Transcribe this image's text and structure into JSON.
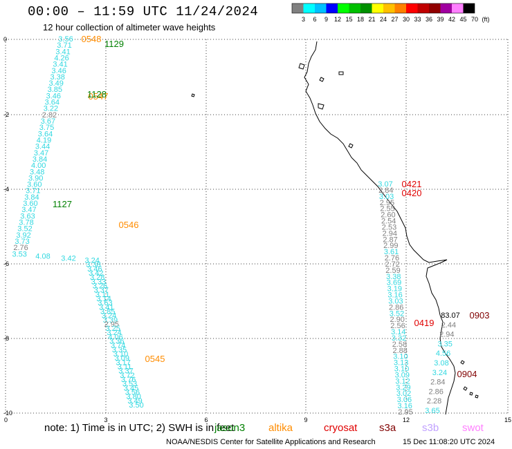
{
  "header": {
    "title": "00:00 – 11:59 UTC 11/24/2024",
    "subtitle": "12 hour collection of altimeter wave heights"
  },
  "colorbar": {
    "colors": [
      "#808080",
      "#00ffff",
      "#00c0ff",
      "#0000ff",
      "#00ff00",
      "#00c000",
      "#009000",
      "#ffff00",
      "#ffc000",
      "#ff8000",
      "#ff0000",
      "#c00000",
      "#900000",
      "#a000a0",
      "#ff80ff",
      "#000000"
    ],
    "labels": [
      "3",
      "6",
      "9",
      "12",
      "15",
      "18",
      "21",
      "24",
      "27",
      "30",
      "33",
      "36",
      "39",
      "42",
      "45",
      "70",
      "(ft)"
    ]
  },
  "axes": {
    "x_ticks": [
      "0",
      "3",
      "6",
      "9",
      "12",
      "15"
    ],
    "y_ticks": [
      "0",
      "-2",
      "-4",
      "-6",
      "-8",
      "-10"
    ]
  },
  "tracks": {
    "track_a": {
      "values": [
        "3.56",
        "3.71",
        "3.41",
        "4.26",
        "3.41",
        "3.46",
        "3.38",
        "3.49",
        "3.85",
        "3.46",
        "3.64",
        "3.22",
        "2.82",
        "3.67",
        "3.75",
        "3.64",
        "4.19",
        "3.44",
        "3.47",
        "3.84",
        "4.00",
        "3.48",
        "3.90",
        "3.60",
        "3.71",
        "3.84",
        "3.60",
        "3.47",
        "3.63",
        "3.78",
        "3.52",
        "3.92",
        "3.73",
        "2.76",
        "3.53",
        "4.08",
        "3.42",
        "3.24",
        "3.38",
        "3.46",
        "3.42",
        "3.28",
        "3.33",
        "3.26",
        "3.37",
        "3.11",
        "3.14",
        "3.63",
        "3.41",
        "3.85",
        "3.24",
        "3.39",
        "2.95",
        "3.25",
        "3.24",
        "4.06",
        "3.36",
        "3.74",
        "3.35",
        "3.10",
        "3.09",
        "3.17",
        "3.11",
        "3.37",
        "3.72",
        "3.76",
        "3.53",
        "3.45",
        "3.56",
        "3.80",
        "3.49",
        "3.50"
      ]
    },
    "track_b": {
      "values": [
        "3.07",
        "2.84",
        "3.03",
        "2.95",
        "2.55",
        "2.60",
        "2.54",
        "2.53",
        "2.94",
        "2.87",
        "2.99",
        "3.61",
        "2.76",
        "2.72",
        "2.59",
        "3.38",
        "3.69",
        "3.19",
        "3.16",
        "3.03",
        "2.86",
        "3.52",
        "2.90",
        "2.56",
        "3.14",
        "3.32",
        "2.58",
        "2.88",
        "3.10",
        "3.13",
        "3.10",
        "3.09",
        "3.12",
        "3.29",
        "3.02",
        "3.06",
        "3.16",
        "2.95"
      ]
    },
    "track_c": {
      "values": [
        "83.07",
        "2.44",
        "2.94",
        "3.35",
        "4.56",
        "3.08",
        "3.24",
        "2.84",
        "2.86",
        "2.28",
        "3.65"
      ]
    }
  },
  "time_labels": [
    {
      "text": "0548",
      "color": "#ff8c00"
    },
    {
      "text": "1129",
      "color": "#008000"
    },
    {
      "text": "0547",
      "color": "#ff8c00"
    },
    {
      "text": "1128",
      "color": "#008000"
    },
    {
      "text": "1127",
      "color": "#008000"
    },
    {
      "text": "0546",
      "color": "#ff8c00"
    },
    {
      "text": "0545",
      "color": "#ff8c00"
    },
    {
      "text": "0421",
      "color": "#e00000"
    },
    {
      "text": "0420",
      "color": "#e00000"
    },
    {
      "text": "0419",
      "color": "#e00000"
    },
    {
      "text": "0903",
      "color": "#800000"
    },
    {
      "text": "0904",
      "color": "#800000"
    }
  ],
  "footer": {
    "note": "note:  1) Time is in UTC;  2) SWH is in feet",
    "missions": [
      {
        "name": "jason3",
        "color": "#008000"
      },
      {
        "name": "altika",
        "color": "#ff8c00"
      },
      {
        "name": "cryosat",
        "color": "#e00000"
      },
      {
        "name": "s3a",
        "color": "#800000"
      },
      {
        "name": "s3b",
        "color": "#c0a0ff"
      },
      {
        "name": "swot",
        "color": "#ff80ff"
      }
    ],
    "credit": "NOAA/NESDIS Center for Satellite Applications and Research",
    "stamp": "15 Dec 11:08:20 UTC 2024"
  }
}
